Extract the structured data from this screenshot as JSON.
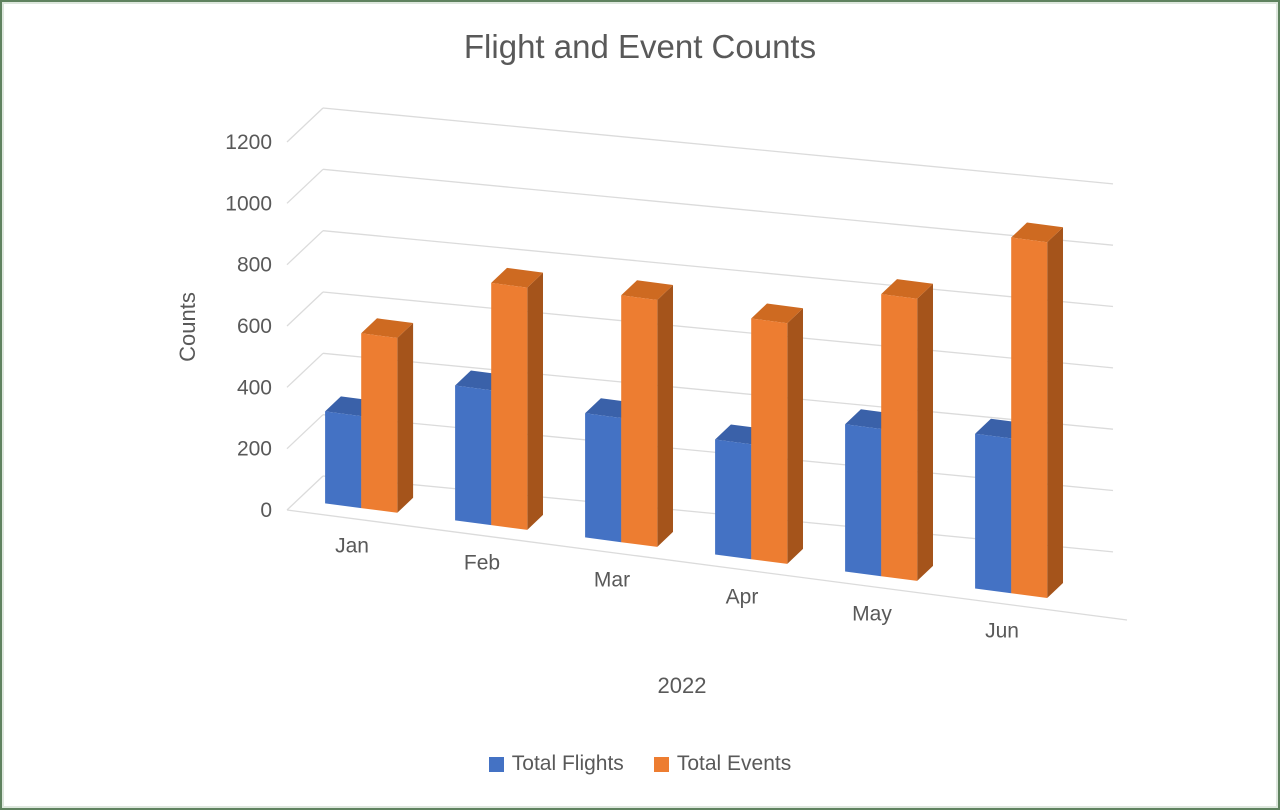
{
  "window": {
    "background": "#ffffff",
    "border_color": "#5f825f"
  },
  "chart_data": {
    "type": "bar",
    "subtype": "3d-clustered-column",
    "title": "Flight and Event Counts",
    "categories": [
      "Jan",
      "Feb",
      "Mar",
      "Apr",
      "May",
      "Jun"
    ],
    "series": [
      {
        "name": "Total Flights",
        "values": [
          300,
          440,
          405,
          375,
          480,
          505
        ],
        "color_front": "#4472C4",
        "color_top": "#3A61A9",
        "color_side": "#2F4F8F"
      },
      {
        "name": "Total Events",
        "values": [
          570,
          790,
          805,
          785,
          920,
          1160
        ],
        "color_front": "#ED7D31",
        "color_top": "#CE6A21",
        "color_side": "#A5541B"
      }
    ],
    "xlabel": "2022",
    "ylabel": "Counts",
    "ylim": [
      0,
      1200
    ],
    "ytick_step": 200,
    "yticks": [
      0,
      200,
      400,
      600,
      800,
      1000,
      1200
    ],
    "grid": true,
    "legend_position": "bottom",
    "gridline_color": "#D9D9D9",
    "text_color": "#595959"
  }
}
